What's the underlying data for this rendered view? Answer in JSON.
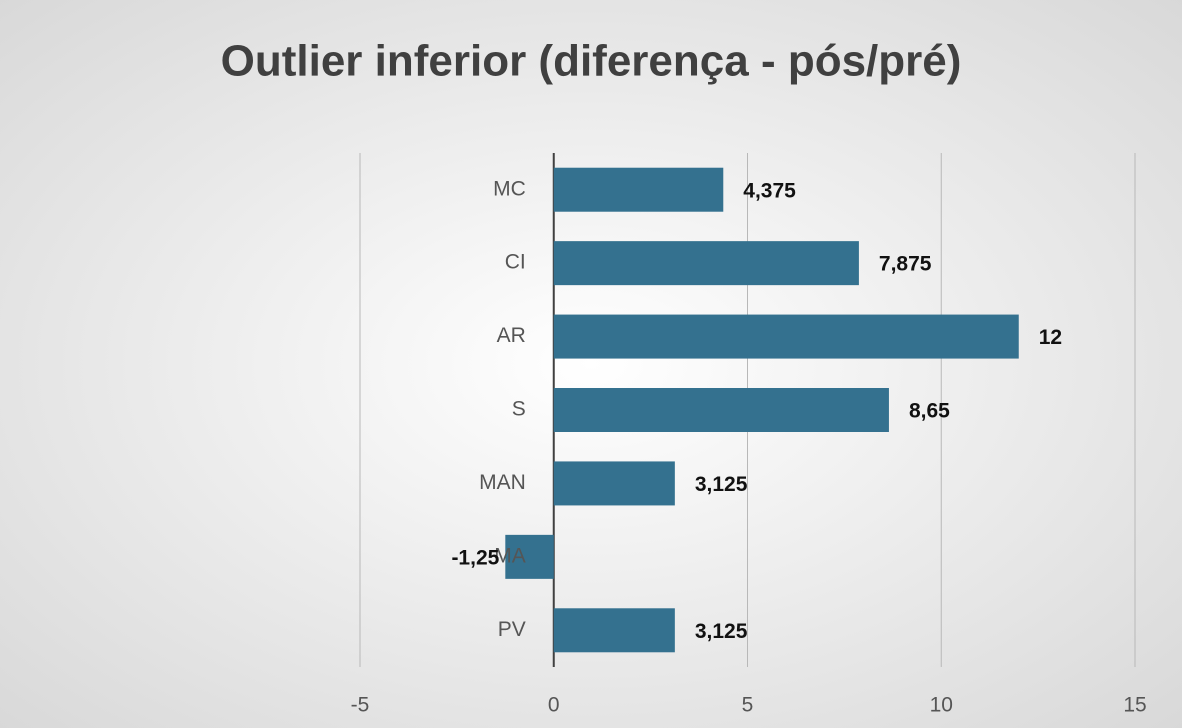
{
  "chart_data": {
    "type": "bar",
    "orientation": "horizontal",
    "title": "Outlier inferior (diferença - pós/pré)",
    "categories": [
      "MC",
      "CI",
      "AR",
      "S",
      "MAN",
      "MA",
      "PV"
    ],
    "values": [
      4.375,
      7.875,
      12,
      8.65,
      3.125,
      -1.25,
      3.125
    ],
    "value_labels": [
      "4,375",
      "7,875",
      "12",
      "8,65",
      "3,125",
      "-1,25",
      "3,125"
    ],
    "color": "#34718f",
    "xlim": [
      -5,
      15
    ],
    "xticks": [
      -5,
      0,
      5,
      10,
      15
    ],
    "grid": true
  }
}
